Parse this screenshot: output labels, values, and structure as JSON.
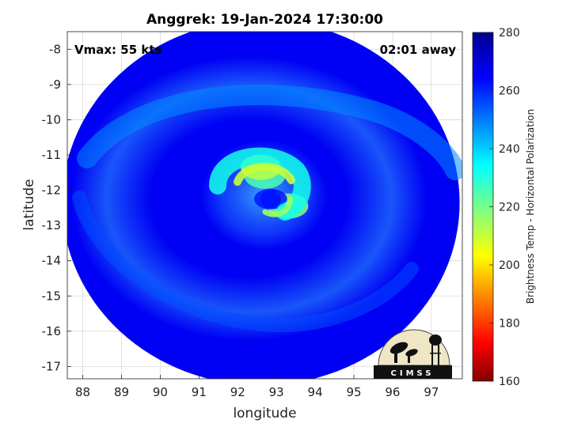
{
  "chart_data": {
    "type": "heatmap",
    "title": "Anggrek: 19-Jan-2024 17:30:00",
    "xlabel": "longitude",
    "ylabel": "latitude",
    "xlim": [
      87.6,
      97.8
    ],
    "ylim": [
      -17.35,
      -7.5
    ],
    "xticks": [
      88,
      89,
      90,
      91,
      92,
      93,
      94,
      95,
      96,
      97
    ],
    "yticks": [
      -8,
      -9,
      -10,
      -11,
      -12,
      -13,
      -14,
      -15,
      -16,
      -17
    ],
    "grid": true,
    "annotations": {
      "vmax": "Vmax: 55 kts",
      "time_offset": "02:01 away"
    },
    "colorbar": {
      "label": "Brightness Temp - Horizontal Polarization",
      "range": [
        160,
        280
      ],
      "ticks": [
        280,
        260,
        240,
        220,
        200,
        180,
        160
      ],
      "colormap": "jet"
    },
    "swath_center": [
      92.6,
      -12.35
    ],
    "storm_center": [
      92.85,
      -12.25
    ],
    "features": [
      {
        "name": "eyewall warm arc",
        "lon": 92.7,
        "lat": -11.6,
        "value": 225
      },
      {
        "name": "eyewall peak",
        "lon": 92.6,
        "lat": -11.35,
        "value": 212
      },
      {
        "name": "southeast inner band",
        "lon": 93.3,
        "lat": -12.45,
        "value": 218
      },
      {
        "name": "eye",
        "lon": 92.85,
        "lat": -12.25,
        "value": 262
      },
      {
        "name": "outer spiral band",
        "lon": 91.5,
        "lat": -10.5,
        "value": 245
      },
      {
        "name": "background ocean",
        "lon": 94.5,
        "lat": -14.5,
        "value": 268
      }
    ]
  },
  "logo": {
    "text": "CIMSS"
  }
}
